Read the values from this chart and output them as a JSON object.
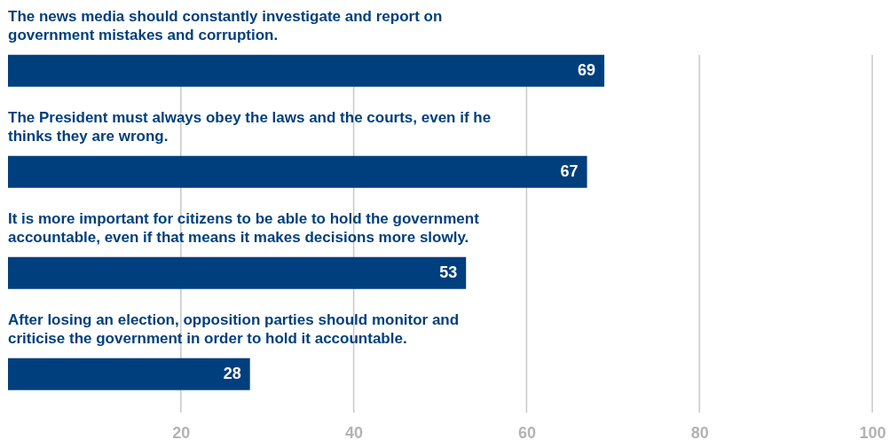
{
  "chart_data": {
    "type": "bar",
    "orientation": "horizontal",
    "categories": [
      "The news media should constantly investigate and report on government mistakes and corruption.",
      "The President must always obey the laws and the courts, even if he thinks they are wrong.",
      "It is more important for citizens to be able to hold the government accountable, even if that means it makes decisions more slowly.",
      "After losing an election, opposition parties should monitor and criticise the government in order to hold it accountable."
    ],
    "values": [
      69,
      67,
      53,
      28
    ],
    "color": "#003f7d",
    "xlim": [
      0,
      100
    ],
    "xticks": [
      20,
      40,
      60,
      80,
      100
    ],
    "grid": "x",
    "data_labels": true
  }
}
